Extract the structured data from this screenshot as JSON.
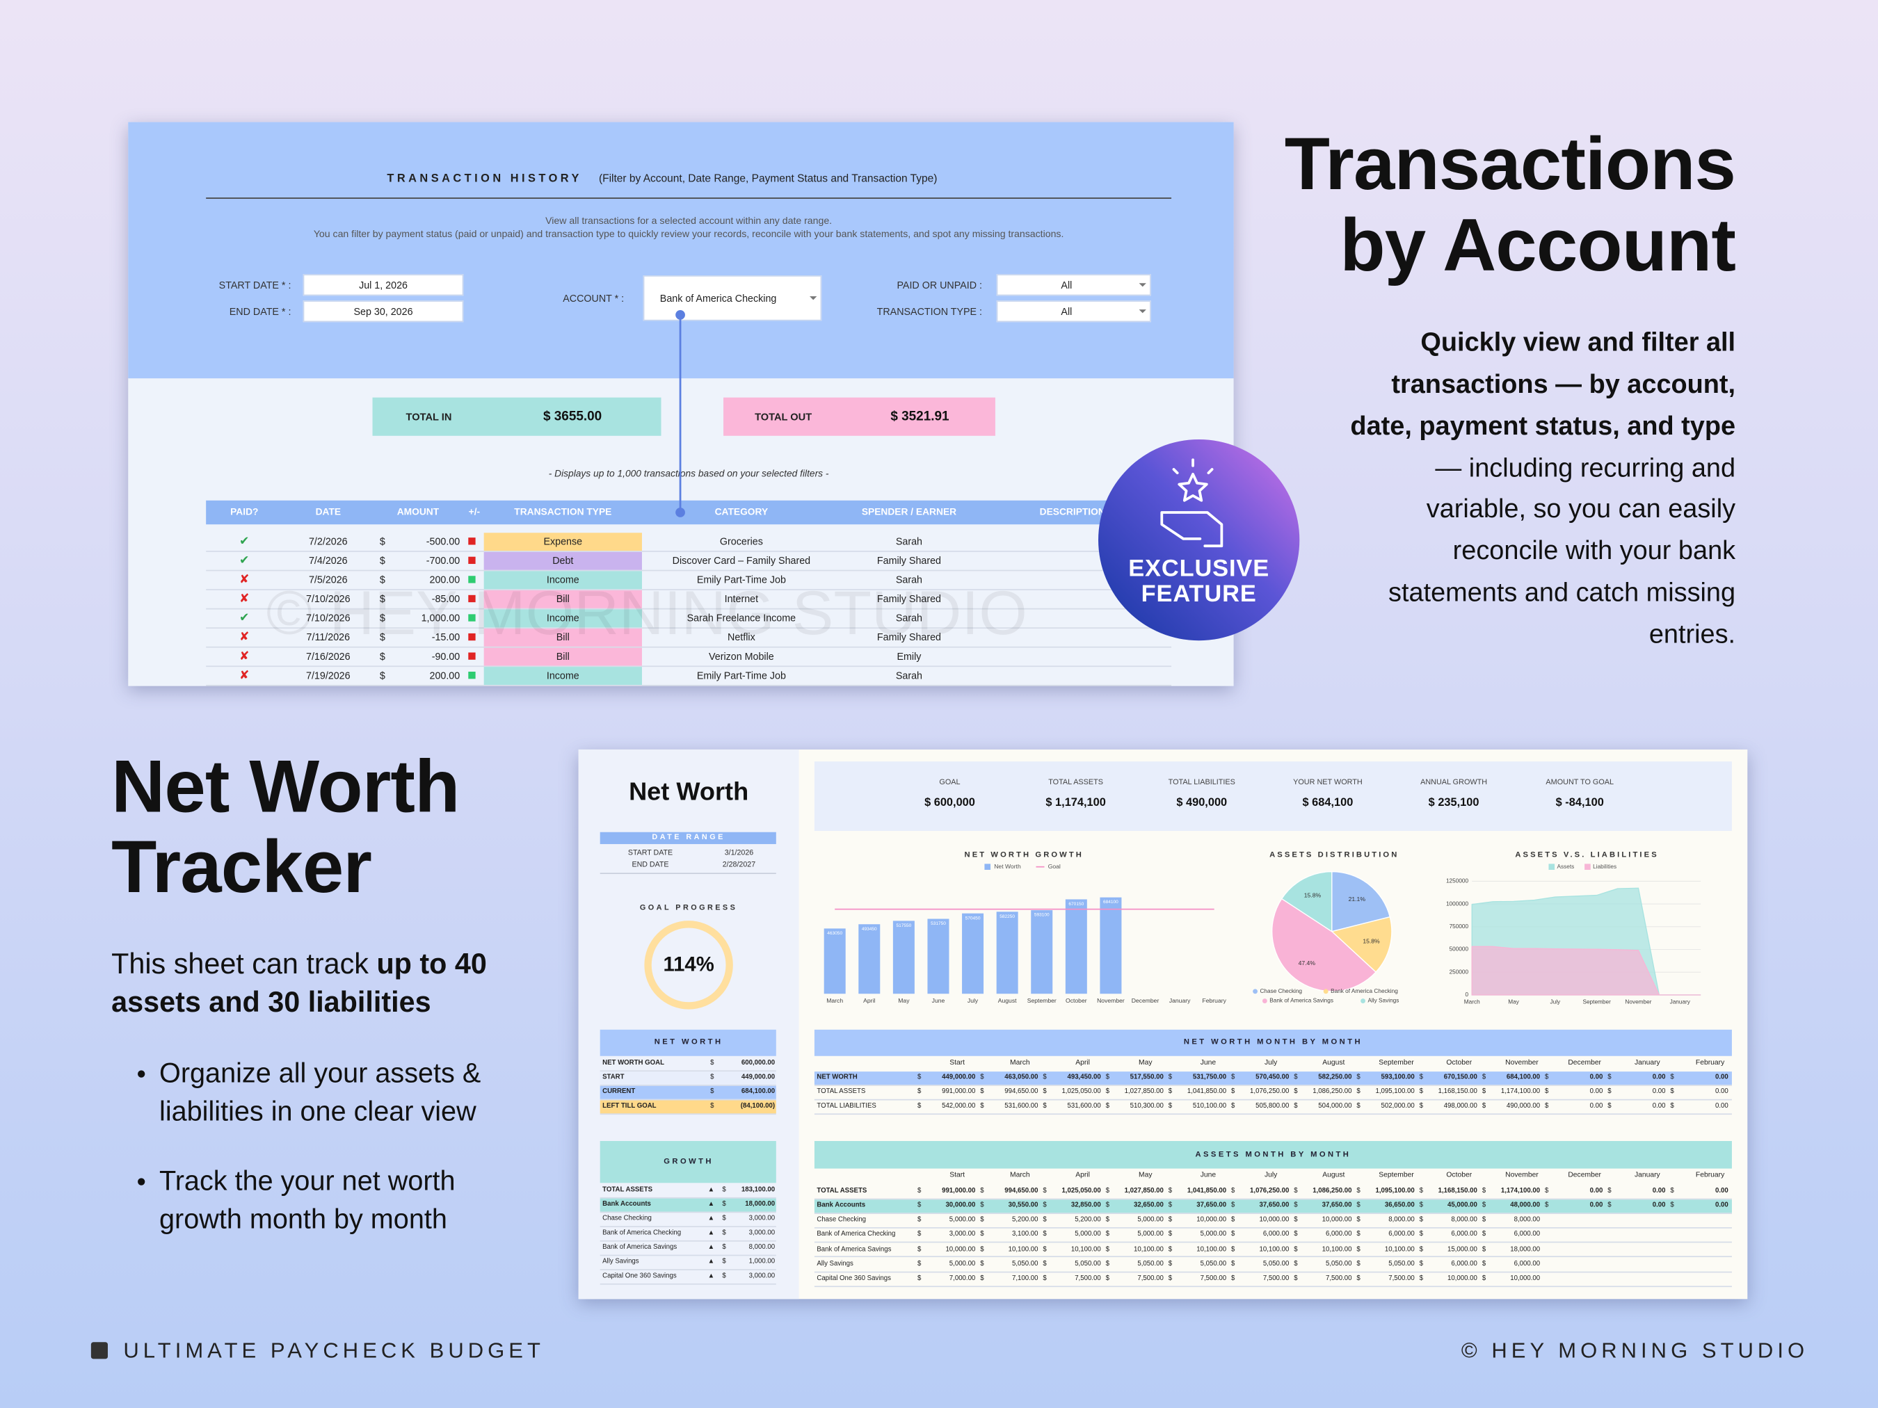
{
  "headline": {
    "lines": [
      "Transactions",
      "by Account"
    ],
    "bold_lines": [
      "Quickly view and filter all",
      "transactions — by account,",
      "date, payment status, and type"
    ],
    "lines_after": [
      "— including recurring and",
      "variable, so you can easily",
      "reconcile with your bank",
      "statements and catch missing",
      "entries."
    ]
  },
  "badge": [
    "EXCLUSIVE",
    "FEATURE"
  ],
  "transactions_panel": {
    "title": "TRANSACTION HISTORY",
    "subtitle": "(Filter by Account, Date Range, Payment Status and Transaction Type)",
    "description": [
      "View all transactions for a selected account within any date range.",
      "You can filter by payment status (paid or unpaid) and transaction type to quickly review your records, reconcile with your bank statements, and spot any missing transactions."
    ],
    "filters": [
      {
        "label": "START DATE * :",
        "value": "Jul 1, 2026"
      },
      {
        "label": "END DATE * :",
        "value": "Sep 30, 2026"
      },
      {
        "label": "ACCOUNT * :",
        "value": "Bank of America Checking"
      },
      {
        "label": "PAID OR UNPAID :",
        "value": "All"
      },
      {
        "label": "TRANSACTION TYPE :",
        "value": "All"
      }
    ],
    "total_in": {
      "label": "TOTAL IN",
      "value": "$ 3655.00"
    },
    "total_out": {
      "label": "TOTAL OUT",
      "value": "$ 3521.91"
    },
    "note": "-   Displays up to 1,000 transactions based on your selected filters   -",
    "watermark": "© HEY MORNING STUDIO",
    "columns": [
      "PAID?",
      "DATE",
      "AMOUNT",
      "+/-",
      "TRANSACTION TYPE",
      "CATEGORY",
      "SPENDER / EARNER",
      "DESCRIPTION"
    ],
    "currency": "$",
    "rows": [
      {
        "paid": "✔",
        "date": "7/2/2026",
        "amount": "-500.00",
        "type": "Expense",
        "category": "Groceries",
        "person": "Sarah"
      },
      {
        "paid": "✔",
        "date": "7/4/2026",
        "amount": "-700.00",
        "type": "Debt",
        "category": "Discover Card – Family Shared",
        "person": "Family Shared"
      },
      {
        "paid": "✘",
        "date": "7/5/2026",
        "amount": "200.00",
        "type": "Income",
        "category": "Emily Part-Time Job",
        "person": "Sarah"
      },
      {
        "paid": "✘",
        "date": "7/10/2026",
        "amount": "-85.00",
        "type": "Bill",
        "category": "Internet",
        "person": "Family Shared"
      },
      {
        "paid": "✔",
        "date": "7/10/2026",
        "amount": "1,000.00",
        "type": "Income",
        "category": "Sarah Freelance Income",
        "person": "Sarah"
      },
      {
        "paid": "✘",
        "date": "7/11/2026",
        "amount": "-15.00",
        "type": "Bill",
        "category": "Netflix",
        "person": "Family Shared"
      },
      {
        "paid": "✘",
        "date": "7/16/2026",
        "amount": "-90.00",
        "type": "Bill",
        "category": "Verizon Mobile",
        "person": "Emily"
      },
      {
        "paid": "✘",
        "date": "7/19/2026",
        "amount": "200.00",
        "type": "Income",
        "category": "Emily Part-Time Job",
        "person": "Sarah"
      }
    ]
  },
  "net_worth_heading": [
    "Net Worth",
    "Tracker"
  ],
  "intro": [
    [
      {
        "text": "This sheet can track ",
        "bold": false
      },
      {
        "text": "up to 40",
        "bold": true
      }
    ],
    [
      {
        "text": "assets and 30 liabilities",
        "bold": true
      }
    ]
  ],
  "bullets": [
    [
      "Organize all your assets &",
      "liabilities in one clear view"
    ],
    [
      "Track the your net worth",
      "growth month by month"
    ]
  ],
  "footer": {
    "left": "ULTIMATE PAYCHECK BUDGET",
    "right": "© HEY MORNING STUDIO"
  },
  "net_worth_panel": {
    "title": "Net Worth",
    "date_range": {
      "header": "DATE RANGE",
      "rows": [
        [
          "START DATE",
          "3/1/2026"
        ],
        [
          "END DATE",
          "2/28/2027"
        ]
      ]
    },
    "goal_progress": {
      "label": "GOAL PROGRESS",
      "value": "114%"
    },
    "currency": "$",
    "net_worth": {
      "header": "NET WORTH",
      "rows": [
        [
          "NET WORTH GOAL",
          "600,000.00"
        ],
        [
          "START",
          "449,000.00"
        ],
        [
          "CURRENT",
          "684,100.00"
        ],
        [
          "LEFT TILL GOAL",
          "(84,100.00)"
        ]
      ]
    },
    "growth": {
      "header": "GROWTH",
      "arrow": "▲",
      "rows": [
        [
          "TOTAL ASSETS",
          "183,100.00"
        ],
        [
          "Bank Accounts",
          "18,000.00"
        ],
        [
          "Chase Checking",
          "3,000.00"
        ],
        [
          "Bank of America Checking",
          "3,000.00"
        ],
        [
          "Bank of America Savings",
          "8,000.00"
        ],
        [
          "Ally Savings",
          "1,000.00"
        ],
        [
          "Capital One 360 Savings",
          "3,000.00"
        ]
      ]
    },
    "stats": [
      {
        "label": "GOAL",
        "value": "$ 600,000"
      },
      {
        "label": "TOTAL ASSETS",
        "value": "$ 1,174,100"
      },
      {
        "label": "TOTAL LIABILITIES",
        "value": "$ 490,000"
      },
      {
        "label": "YOUR NET WORTH",
        "value": "$ 684,100"
      },
      {
        "label": "ANNUAL GROWTH",
        "value": "$ 235,100"
      },
      {
        "label": "AMOUNT TO GOAL",
        "value": "$ -84,100"
      }
    ],
    "columns": [
      "Start",
      "March",
      "April",
      "May",
      "June",
      "July",
      "August",
      "September",
      "October",
      "November",
      "December",
      "January",
      "February"
    ],
    "monthly": {
      "header": "NET WORTH MONTH BY MONTH",
      "rows": [
        {
          "label": "NET WORTH",
          "values": [
            "449,000.00",
            "463,050.00",
            "493,450.00",
            "517,550.00",
            "531,750.00",
            "570,450.00",
            "582,250.00",
            "593,100.00",
            "670,150.00",
            "684,100.00",
            "0.00",
            "0.00",
            "0.00"
          ]
        },
        {
          "label": "TOTAL ASSETS",
          "values": [
            "991,000.00",
            "994,650.00",
            "1,025,050.00",
            "1,027,850.00",
            "1,041,850.00",
            "1,076,250.00",
            "1,086,250.00",
            "1,095,100.00",
            "1,168,150.00",
            "1,174,100.00",
            "0.00",
            "0.00",
            "0.00"
          ]
        },
        {
          "label": "TOTAL LIABILITIES",
          "values": [
            "542,000.00",
            "531,600.00",
            "531,600.00",
            "510,300.00",
            "510,100.00",
            "505,800.00",
            "504,000.00",
            "502,000.00",
            "498,000.00",
            "490,000.00",
            "0.00",
            "0.00",
            "0.00"
          ]
        }
      ]
    },
    "assets": {
      "header": "ASSETS MONTH BY MONTH",
      "rows": [
        {
          "label": "TOTAL ASSETS",
          "values": [
            "991,000.00",
            "994,650.00",
            "1,025,050.00",
            "1,027,850.00",
            "1,041,850.00",
            "1,076,250.00",
            "1,086,250.00",
            "1,095,100.00",
            "1,168,150.00",
            "1,174,100.00",
            "0.00",
            "0.00",
            "0.00"
          ]
        },
        {
          "label": "Bank Accounts",
          "values": [
            "30,000.00",
            "30,550.00",
            "32,850.00",
            "32,650.00",
            "37,650.00",
            "37,650.00",
            "37,650.00",
            "36,650.00",
            "45,000.00",
            "48,000.00",
            "0.00",
            "0.00",
            "0.00"
          ]
        },
        {
          "label": "Chase Checking",
          "values": [
            "5,000.00",
            "5,200.00",
            "5,200.00",
            "5,000.00",
            "10,000.00",
            "10,000.00",
            "10,000.00",
            "8,000.00",
            "8,000.00",
            "8,000.00"
          ]
        },
        {
          "label": "Bank of America Checking",
          "values": [
            "3,000.00",
            "3,100.00",
            "5,000.00",
            "5,000.00",
            "5,000.00",
            "6,000.00",
            "6,000.00",
            "6,000.00",
            "6,000.00",
            "6,000.00"
          ]
        },
        {
          "label": "Bank of America Savings",
          "values": [
            "10,000.00",
            "10,100.00",
            "10,100.00",
            "10,100.00",
            "10,100.00",
            "10,100.00",
            "10,100.00",
            "10,100.00",
            "15,000.00",
            "18,000.00"
          ]
        },
        {
          "label": "Ally Savings",
          "values": [
            "5,000.00",
            "5,050.00",
            "5,050.00",
            "5,050.00",
            "5,050.00",
            "5,050.00",
            "5,050.00",
            "5,050.00",
            "6,000.00",
            "6,000.00"
          ]
        },
        {
          "label": "Capital One 360 Savings",
          "values": [
            "7,000.00",
            "7,100.00",
            "7,500.00",
            "7,500.00",
            "7,500.00",
            "7,500.00",
            "7,500.00",
            "7,500.00",
            "10,000.00",
            "10,000.00"
          ]
        }
      ]
    }
  },
  "chart_data": [
    {
      "type": "bar",
      "title": "NET WORTH GROWTH",
      "categories": [
        "March",
        "April",
        "May",
        "June",
        "July",
        "August",
        "September",
        "October",
        "November",
        "December",
        "January",
        "February"
      ],
      "series": [
        {
          "name": "Net Worth",
          "color": "#8fb6f5",
          "values": [
            463050,
            493450,
            517550,
            531750,
            570450,
            582250,
            593100,
            670150,
            684100,
            null,
            null,
            null
          ]
        },
        {
          "name": "Goal",
          "color": "#f48fc5",
          "values": [
            600000,
            600000,
            600000,
            600000,
            600000,
            600000,
            600000,
            600000,
            600000,
            600000,
            600000,
            600000
          ]
        }
      ],
      "ylim": [
        0,
        850000
      ]
    },
    {
      "type": "pie",
      "title": "ASSETS DISTRIBUTION",
      "categories": [
        "Chase Checking",
        "Bank of America Checking",
        "Bank of America Savings",
        "Ally Savings"
      ],
      "values": [
        21.1,
        15.8,
        47.4,
        15.8
      ],
      "value_labels": [
        "21.1%",
        "15.8%",
        "47.4%",
        "15.8%"
      ],
      "colors": [
        "#9ec0f5",
        "#ffdc8f",
        "#f9b3d6",
        "#a8e3e0"
      ]
    },
    {
      "type": "area",
      "title": "ASSETS V.S. LIABILITIES",
      "categories": [
        "March",
        null,
        "May",
        null,
        "July",
        null,
        "September",
        null,
        "November",
        null,
        "January",
        null
      ],
      "series": [
        {
          "name": "Assets",
          "color": "#a8e3e0",
          "values": [
            994650,
            1025050,
            1027850,
            1041850,
            1076250,
            1086250,
            1095100,
            1168150,
            1174100,
            0,
            0,
            0
          ]
        },
        {
          "name": "Liabilities",
          "color": "#f7b6d6",
          "values": [
            531600,
            531600,
            510300,
            510100,
            505800,
            504000,
            502000,
            498000,
            490000,
            0,
            0,
            0
          ]
        }
      ],
      "ylim": [
        0,
        1250000
      ],
      "yticks": [
        0,
        250000,
        500000,
        750000,
        1000000,
        1250000
      ],
      "grid": true
    }
  ]
}
